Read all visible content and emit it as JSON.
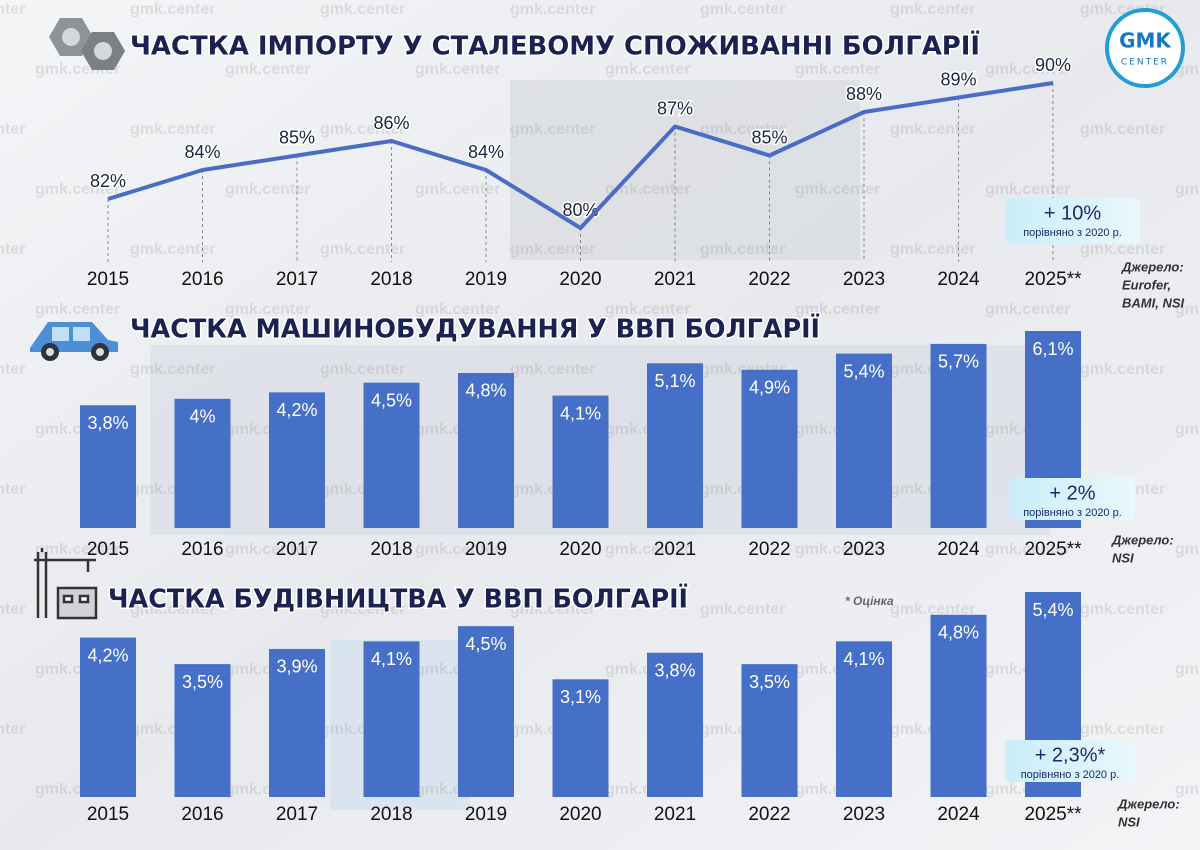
{
  "logo": {
    "top": "GMK",
    "bottom": "CENTER"
  },
  "watermark": "gmk.center",
  "chart_data": [
    {
      "type": "line",
      "title": "ЧАСТКА ІМПОРТУ У СТАЛЕВОМУ СПОЖИВАННІ БОЛГАРІЇ",
      "categories": [
        "2015",
        "2016",
        "2017",
        "2018",
        "2019",
        "2020",
        "2021",
        "2022",
        "2023",
        "2024",
        "2025**"
      ],
      "values": [
        82,
        84,
        85,
        86,
        84,
        80,
        87,
        85,
        88,
        89,
        90
      ],
      "value_labels": [
        "82%",
        "84%",
        "85%",
        "86%",
        "84%",
        "80%",
        "87%",
        "85%",
        "88%",
        "89%",
        "90%"
      ],
      "color": "#4a6cc4",
      "annotation": {
        "value": "+ 10%",
        "text": "порівняно з 2020 р."
      },
      "source": [
        "Джерело:",
        "Eurofer,",
        "BAMI, NSI"
      ]
    },
    {
      "type": "bar",
      "title": "ЧАСТКА МАШИНОБУДУВАННЯ У ВВП БОЛГАРІЇ",
      "categories": [
        "2015",
        "2016",
        "2017",
        "2018",
        "2019",
        "2020",
        "2021",
        "2022",
        "2023",
        "2024",
        "2025**"
      ],
      "values": [
        3.8,
        4,
        4.2,
        4.5,
        4.8,
        4.1,
        5.1,
        4.9,
        5.4,
        5.7,
        6.1
      ],
      "value_labels": [
        "3,8%",
        "4%",
        "4,2%",
        "4,5%",
        "4,8%",
        "4,1%",
        "5,1%",
        "4,9%",
        "5,4%",
        "5,7%",
        "6,1%"
      ],
      "color": "#4670c8",
      "annotation": {
        "value": "+ 2%",
        "text": "порівняно з 2020 р."
      },
      "source": [
        "Джерело:",
        "NSI"
      ]
    },
    {
      "type": "bar",
      "title": "ЧАСТКА БУДІВНИЦТВА У ВВП БОЛГАРІЇ",
      "categories": [
        "2015",
        "2016",
        "2017",
        "2018",
        "2019",
        "2020",
        "2021",
        "2022",
        "2023",
        "2024",
        "2025**"
      ],
      "values": [
        4.2,
        3.5,
        3.9,
        4.1,
        4.5,
        3.1,
        3.8,
        3.5,
        4.1,
        4.8,
        5.4
      ],
      "value_labels": [
        "4,2%",
        "3,5%",
        "3,9%",
        "4,1%",
        "4,5%",
        "3,1%",
        "3,8%",
        "3,5%",
        "4,1%",
        "4,8%",
        "5,4%"
      ],
      "color": "#4670c8",
      "annotation": {
        "value": "+ 2,3%*",
        "text": "порівняно з 2020 р."
      },
      "note": "* Оцінка",
      "source": [
        "Джерело:",
        "NSI"
      ]
    }
  ]
}
